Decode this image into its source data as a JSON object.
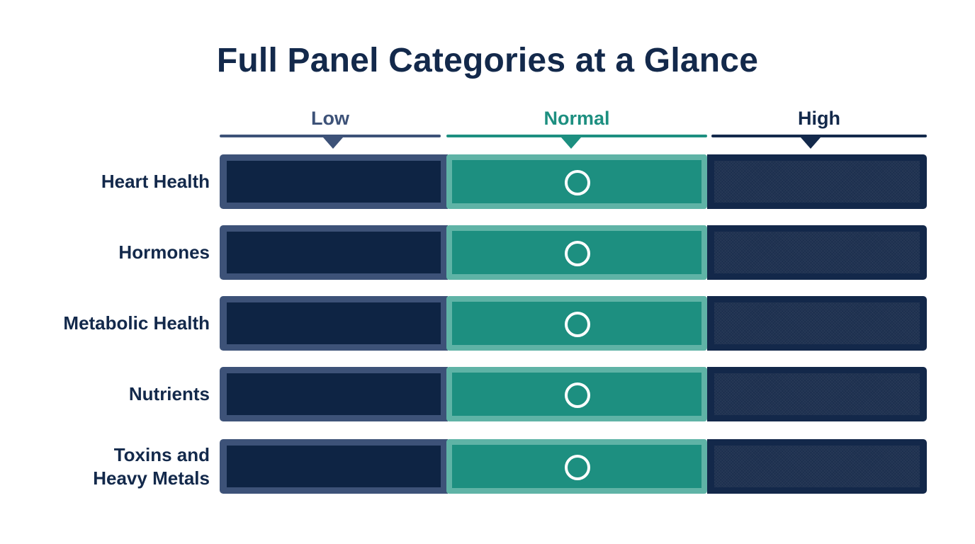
{
  "title": "Full Panel Categories at a Glance",
  "columns": [
    {
      "label": "Low",
      "color": "#3d5278"
    },
    {
      "label": "Normal",
      "color": "#1d8f80"
    },
    {
      "label": "High",
      "color": "#13294b"
    }
  ],
  "rows": [
    {
      "label_lines": [
        "Heart Health"
      ],
      "status": "Normal"
    },
    {
      "label_lines": [
        "Hormones"
      ],
      "status": "Normal"
    },
    {
      "label_lines": [
        "Metabolic Health"
      ],
      "status": "Normal"
    },
    {
      "label_lines": [
        "Nutrients"
      ],
      "status": "Normal"
    },
    {
      "label_lines": [
        "Toxins and",
        "Heavy Metals"
      ],
      "status": "Normal"
    }
  ],
  "marker_icon": "circle-marker-icon"
}
